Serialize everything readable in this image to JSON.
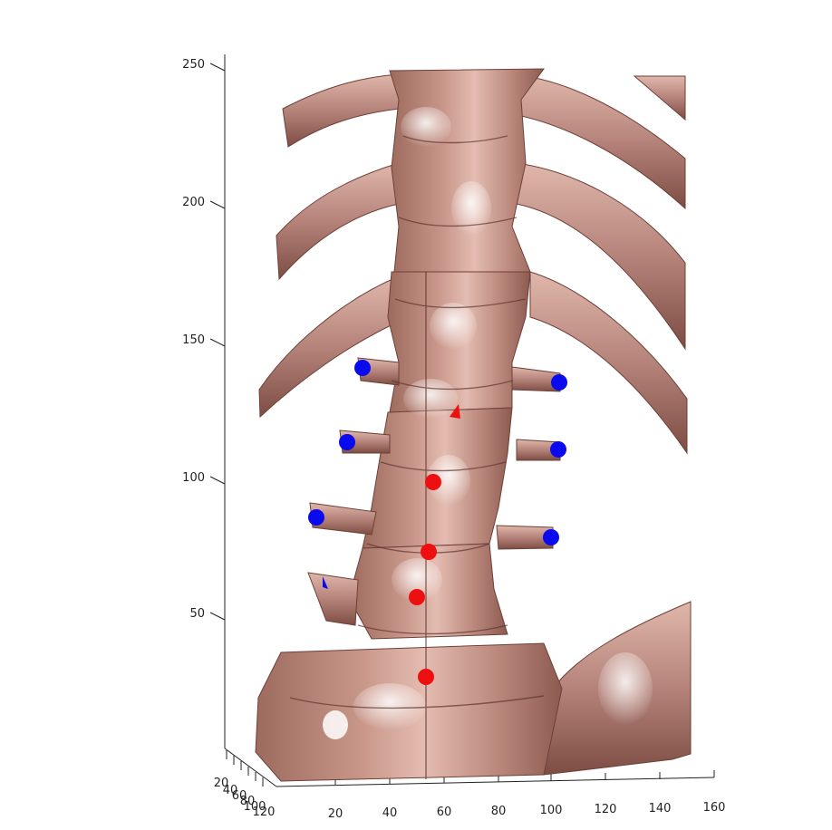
{
  "figure": {
    "axes": {
      "z": {
        "ticks": [
          "250",
          "200",
          "150",
          "100",
          "50"
        ]
      },
      "x": {
        "ticks": [
          "20",
          "40",
          "60",
          "80",
          "100",
          "120",
          "140",
          "160"
        ]
      },
      "y": {
        "ticks": [
          "20",
          "40",
          "60",
          "80",
          "100",
          "120"
        ]
      }
    },
    "colors": {
      "bone": "#c9978a",
      "bone_shadow": "#7a4a40",
      "bone_highlight": "#f1d9d2",
      "landmark_blue": "#0a0aee",
      "landmark_red": "#ee1010",
      "axis": "#222222"
    },
    "landmarks": {
      "blue_count": 7,
      "red_count": 6
    }
  }
}
